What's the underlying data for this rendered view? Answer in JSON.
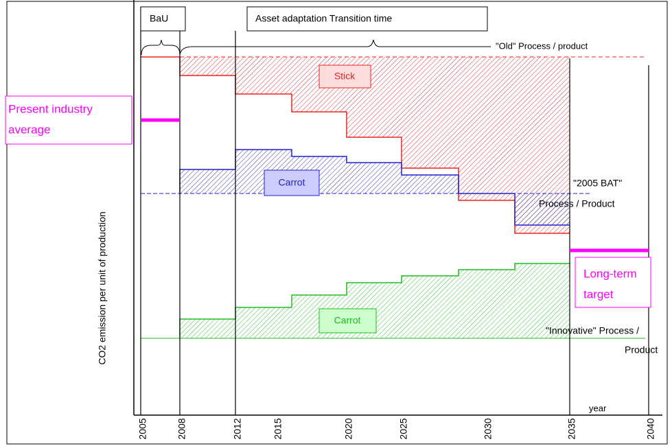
{
  "labels": {
    "bau": "BaU",
    "transition": "Asset adaptation Transition time",
    "old": "\"Old\" Process / product",
    "stick": "Stick",
    "carrot_blue": "Carrot",
    "carrot_green": "Carrot",
    "bat_1": "\"2005 BAT\"",
    "bat_2": "Process / Product",
    "innovative_1": "\"Innovative\" Process /",
    "innovative_2": "Product",
    "present_1": "Present industry",
    "present_2": "average",
    "target_1": "Long-term",
    "target_2": "target",
    "y_axis": "CO2 emission per unit of production",
    "x_axis": "year"
  },
  "years": [
    "2005",
    "2008",
    "2012",
    "2015",
    "2020",
    "2025",
    "2030",
    "2035",
    "2040"
  ]
}
